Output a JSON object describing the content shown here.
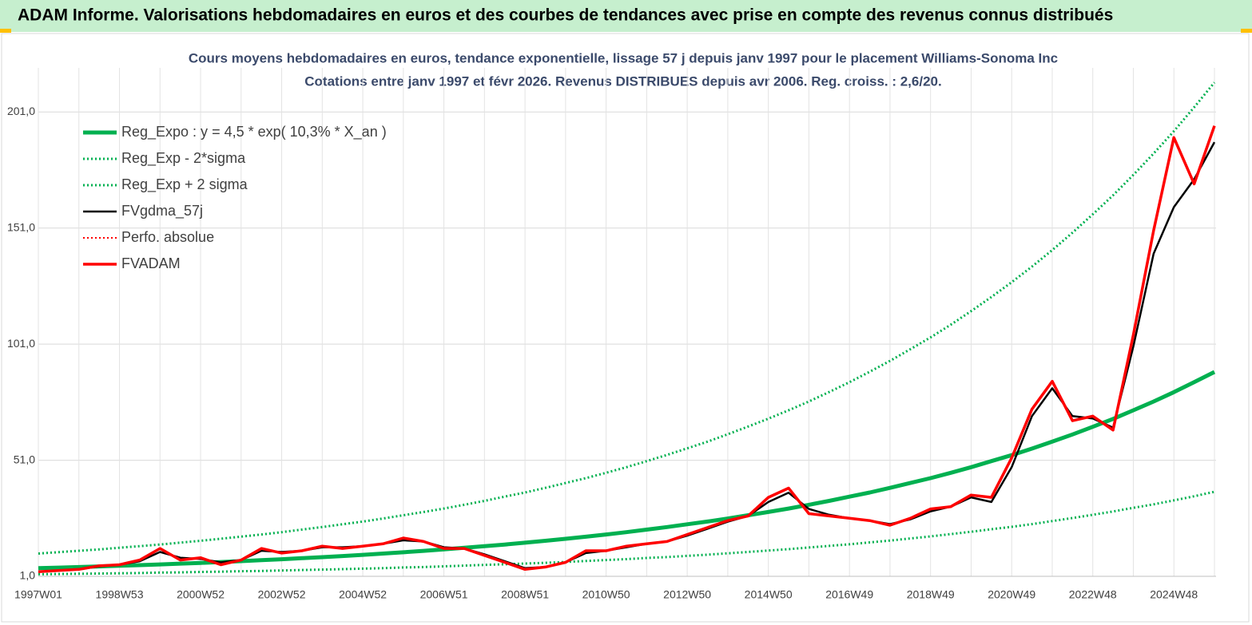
{
  "header": {
    "title": "ADAM Informe. Valorisations hebdomadaires en euros et des courbes de tendances avec prise en compte des revenus connus distribués"
  },
  "chart_data": {
    "type": "line",
    "title": "Cours moyens hebdomadaires en euros, tendance exponentielle, lissage 57 j depuis janv 1997 pour le placement Williams-Sonoma Inc",
    "subtitle": "Cotations entre janv 1997 et févr 2026. Revenus DISTRIBUES depuis avr 2006. Reg. croiss. : 2,6/20.",
    "categories": [
      "1997W01",
      null,
      null,
      null,
      "1998W53",
      null,
      null,
      null,
      "2000W52",
      null,
      null,
      null,
      "2002W52",
      null,
      null,
      null,
      "2004W52",
      null,
      null,
      null,
      "2006W51",
      null,
      null,
      null,
      "2008W51",
      null,
      null,
      null,
      "2010W50",
      null,
      null,
      null,
      "2012W50",
      null,
      null,
      null,
      "2014W50",
      null,
      null,
      null,
      "2016W49",
      null,
      null,
      null,
      "2018W49",
      null,
      null,
      null,
      "2020W49",
      null,
      null,
      null,
      "2022W48",
      null,
      null,
      null,
      "2024W48",
      null,
      null
    ],
    "ylim": [
      1,
      220
    ],
    "yticks": [
      {
        "value": 1,
        "label": "1,0"
      },
      {
        "value": 51,
        "label": "51,0"
      },
      {
        "value": 101,
        "label": "101,0"
      },
      {
        "value": 151,
        "label": "151,0"
      },
      {
        "value": 201,
        "label": "201,0"
      }
    ],
    "grid": true,
    "series": [
      {
        "name": "Reg_Expo : y = 4,5 * exp( 10,3% *  X_an )",
        "color": "#00b050",
        "dash": "solid",
        "width": 5,
        "values": [
          4.5,
          4.74,
          4.99,
          5.25,
          5.53,
          5.82,
          6.13,
          6.45,
          6.79,
          7.15,
          7.53,
          7.93,
          8.35,
          8.79,
          9.25,
          9.74,
          10.25,
          10.79,
          11.36,
          11.96,
          12.59,
          13.26,
          13.96,
          14.69,
          15.47,
          16.29,
          17.15,
          18.05,
          19.0,
          20.0,
          21.1,
          22.2,
          23.4,
          24.6,
          25.9,
          27.3,
          28.7,
          30.2,
          31.8,
          33.5,
          35.3,
          37.1,
          39.1,
          41.2,
          43.3,
          45.6,
          48.0,
          50.6,
          53.2,
          56.0,
          59.0,
          62.1,
          65.4,
          68.8,
          72.5,
          76.3,
          80.3,
          84.6,
          89.0
        ]
      },
      {
        "name": "Reg_Exp - 2*sigma",
        "color": "#00b050",
        "dash": "dotted",
        "width": 3,
        "values": [
          1.9,
          2.0,
          2.1,
          2.2,
          2.3,
          2.4,
          2.6,
          2.7,
          2.9,
          3.0,
          3.2,
          3.3,
          3.5,
          3.7,
          3.9,
          4.1,
          4.3,
          4.5,
          4.8,
          5.0,
          5.3,
          5.6,
          5.9,
          6.2,
          6.5,
          6.8,
          7.2,
          7.6,
          8.0,
          8.4,
          8.9,
          9.3,
          9.8,
          10.3,
          10.9,
          11.5,
          12.1,
          12.7,
          13.4,
          14.1,
          14.8,
          15.6,
          16.4,
          17.3,
          18.2,
          19.2,
          20.2,
          21.3,
          22.3,
          23.5,
          24.8,
          26.1,
          27.5,
          28.9,
          30.5,
          32.0,
          33.7,
          35.5,
          37.4
        ]
      },
      {
        "name": "Reg_Exp + 2 sigma",
        "color": "#00b050",
        "dash": "dotted",
        "width": 3,
        "values": [
          10.8,
          11.4,
          12.0,
          12.6,
          13.3,
          14.0,
          14.7,
          15.5,
          16.3,
          17.2,
          18.1,
          19.0,
          20.0,
          21.1,
          22.2,
          23.4,
          24.6,
          25.9,
          27.3,
          28.7,
          30.2,
          31.8,
          33.5,
          35.3,
          37.1,
          39.1,
          41.2,
          43.3,
          45.6,
          48.0,
          50.6,
          53.3,
          56.1,
          59.0,
          62.2,
          65.5,
          68.9,
          72.5,
          76.3,
          80.4,
          84.6,
          89.1,
          93.8,
          98.8,
          103.9,
          109.4,
          115.2,
          121.3,
          127.7,
          134.4,
          141.5,
          149.0,
          156.9,
          165.1,
          173.9,
          183.1,
          192.7,
          203.0,
          213.7
        ]
      },
      {
        "name": "FVgdma_57j",
        "color": "#000000",
        "dash": "solid",
        "width": 2.5,
        "values": [
          3,
          3.5,
          4,
          5.3,
          6,
          7.5,
          11.5,
          9,
          8.5,
          7,
          8,
          12,
          11.5,
          12,
          13.5,
          13.5,
          14,
          15,
          16.5,
          16,
          13.5,
          13,
          10.5,
          7.5,
          4.5,
          5,
          7,
          11,
          12,
          13.5,
          15,
          16,
          18.5,
          21.5,
          24.5,
          27,
          33,
          37,
          30,
          27.5,
          26,
          25,
          23.5,
          25.5,
          29,
          31,
          35,
          33,
          48,
          70,
          82,
          70,
          69,
          65,
          100,
          140,
          160,
          172,
          188
        ]
      },
      {
        "name": "Perfo. absolue",
        "color": "#ff0000",
        "dash": "dotted",
        "width": 2,
        "values": [
          3,
          3.5,
          4,
          5.5,
          6,
          8,
          13,
          8,
          9,
          6,
          8,
          13,
          11,
          12,
          14,
          13,
          14,
          15,
          17.5,
          16,
          13,
          13,
          10,
          7,
          4,
          5,
          7,
          12,
          12,
          14,
          15,
          16,
          19,
          22,
          25,
          27,
          35,
          39,
          28,
          27,
          26,
          25,
          23,
          26,
          30,
          31,
          36,
          35,
          52,
          73,
          85,
          68,
          70,
          64,
          105,
          150,
          190,
          170,
          195
        ]
      },
      {
        "name": "FVADAM",
        "color": "#ff0000",
        "dash": "solid",
        "width": 3.5,
        "values": [
          3,
          3.5,
          4,
          5.5,
          6,
          8,
          13,
          8,
          9,
          6,
          8,
          13,
          11,
          12,
          14,
          13,
          14,
          15,
          17.5,
          16,
          13,
          13,
          10,
          7,
          4,
          5,
          7,
          12,
          12,
          14,
          15,
          16,
          19,
          22,
          25,
          27,
          35,
          39,
          28,
          27,
          26,
          25,
          23,
          26,
          30,
          31,
          36,
          35,
          52,
          73,
          85,
          68,
          70,
          64,
          105,
          150,
          190,
          170,
          195
        ]
      }
    ]
  }
}
